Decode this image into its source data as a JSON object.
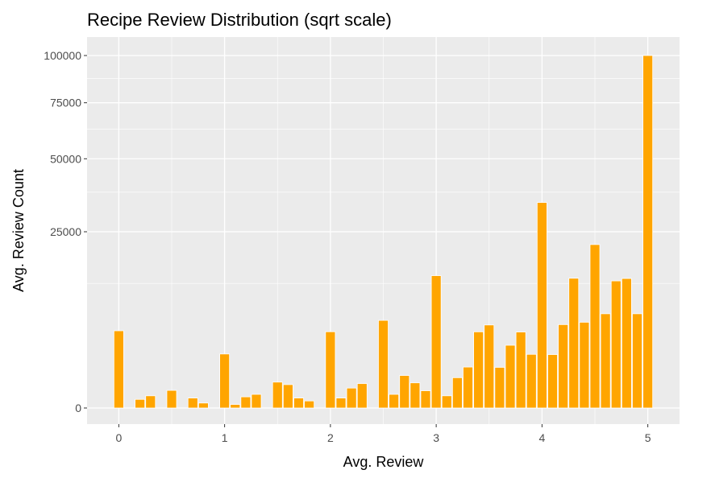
{
  "chart_data": {
    "type": "bar",
    "title": "Recipe Review Distribution (sqrt scale)",
    "xlabel": "Avg. Review",
    "ylabel": "Avg. Review Count",
    "y_scale": "sqrt",
    "x_ticks": [
      "0",
      "1",
      "2",
      "3",
      "4",
      "5"
    ],
    "y_ticks": [
      "0",
      "25000",
      "50000",
      "75000",
      "100000"
    ],
    "bar_color": "#FFA500",
    "panel_background": "#EBEBEB",
    "grid": true,
    "x": [
      0,
      0.1,
      0.2,
      0.3,
      0.4,
      0.5,
      0.6,
      0.7,
      0.8,
      0.9,
      1,
      1.1,
      1.2,
      1.3,
      1.4,
      1.5,
      1.6,
      1.7,
      1.8,
      1.9,
      2,
      2.1,
      2.2,
      2.3,
      2.4,
      2.5,
      2.6,
      2.7,
      2.8,
      2.9,
      3,
      3.1,
      3.2,
      3.3,
      3.4,
      3.5,
      3.6,
      3.7,
      3.8,
      3.9,
      4,
      4.1,
      4.2,
      4.3,
      4.4,
      4.5,
      4.6,
      4.7,
      4.8,
      4.9,
      5
    ],
    "values": [
      4800,
      0,
      60,
      120,
      0,
      250,
      0,
      80,
      20,
      0,
      2350,
      10,
      100,
      150,
      0,
      540,
      440,
      80,
      40,
      0,
      4680,
      80,
      320,
      480,
      0,
      6180,
      150,
      850,
      510,
      240,
      14100,
      120,
      740,
      1350,
      4670,
      5550,
      1330,
      3170,
      4650,
      2320,
      34000,
      2300,
      5600,
      13550,
      5920,
      21500,
      7150,
      13000,
      13500,
      7150,
      100000
    ]
  }
}
